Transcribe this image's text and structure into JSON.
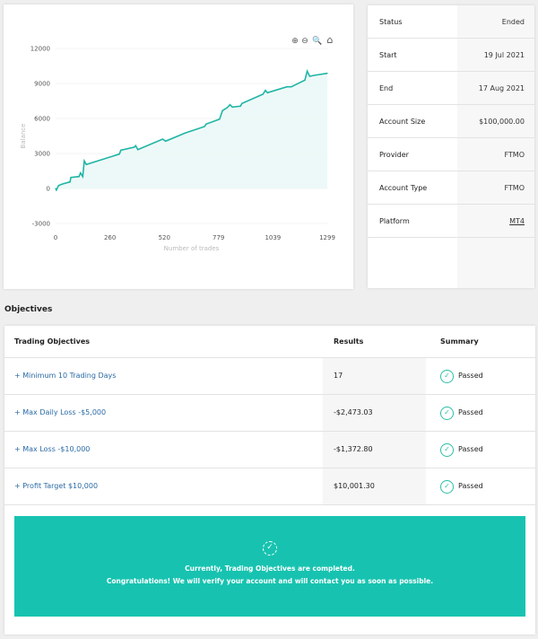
{
  "chart_data": {
    "type": "area",
    "xlabel": "Number of trades",
    "ylabel": "Balance",
    "xlim": [
      0,
      1299
    ],
    "ylim": [
      -3000,
      12000
    ],
    "xticks": [
      0,
      260,
      520,
      779,
      1039,
      1299
    ],
    "yticks": [
      12000,
      9000,
      6000,
      3000,
      0,
      -3000
    ],
    "grid": true,
    "color": "#1fb5a5",
    "x": [
      0,
      4,
      14,
      33,
      69,
      73,
      112,
      119,
      130,
      137,
      147,
      305,
      312,
      376,
      383,
      393,
      512,
      526,
      619,
      712,
      720,
      784,
      798,
      820,
      834,
      845,
      884,
      891,
      991,
      1003,
      1013,
      1106,
      1127,
      1192,
      1203,
      1215,
      1235,
      1299
    ],
    "y": [
      0,
      -128,
      256,
      385,
      564,
      949,
      1026,
      1333,
      1026,
      2359,
      2051,
      2949,
      3282,
      3538,
      3667,
      3333,
      4231,
      4051,
      4744,
      5308,
      5513,
      5949,
      6667,
      6923,
      7179,
      6974,
      7051,
      7282,
      8077,
      8410,
      8205,
      8718,
      8718,
      9282,
      10051,
      9615,
      9692,
      9872
    ]
  },
  "chart_toolbar": {
    "icons": [
      "zoom-in-icon",
      "zoom-out-icon",
      "magnifier-icon",
      "home-icon"
    ]
  },
  "info": [
    {
      "label": "Status",
      "value": "Ended"
    },
    {
      "label": "Start",
      "value": "19 Jul 2021"
    },
    {
      "label": "End",
      "value": "17 Aug 2021"
    },
    {
      "label": "Account Size",
      "value": "$100,000.00"
    },
    {
      "label": "Provider",
      "value": "FTMO"
    },
    {
      "label": "Account Type",
      "value": "FTMO"
    },
    {
      "label": "Platform",
      "value": "MT4"
    }
  ],
  "objectives": {
    "title": "Objectives",
    "headers": [
      "Trading Objectives",
      "Results",
      "Summary"
    ],
    "rows": [
      {
        "name": "+ Minimum 10 Trading Days",
        "result": "17",
        "summary": "Passed"
      },
      {
        "name": "+ Max Daily Loss -$5,000",
        "result": "-$2,473.03",
        "summary": "Passed"
      },
      {
        "name": "+ Max Loss -$10,000",
        "result": "-$1,372.80",
        "summary": "Passed"
      },
      {
        "name": "+ Profit Target $10,000",
        "result": "$10,001.30",
        "summary": "Passed"
      }
    ],
    "banner": {
      "line1": "Currently, Trading Objectives are completed.",
      "line2": "Congratulations! We will verify your account and will contact you as soon as possible.",
      "color": "#17c3b0"
    }
  }
}
